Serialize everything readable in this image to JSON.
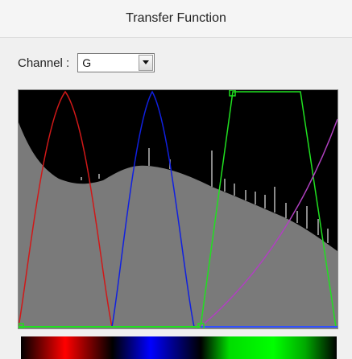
{
  "panel": {
    "title": "Transfer Function"
  },
  "channel": {
    "label": "Channel :",
    "selected": "G"
  },
  "icons": {
    "dropdown": "chevron-down-icon"
  },
  "colors": {
    "red_curve": "#d01818",
    "blue_curve": "#1020e0",
    "green_curve": "#20e020",
    "magenta_curve": "#b040c0",
    "histogram": "#7a7a7a",
    "background": "#000000"
  }
}
